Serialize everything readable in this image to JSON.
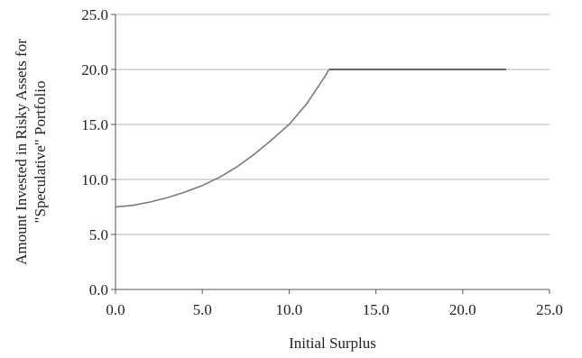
{
  "chart_data": {
    "type": "line",
    "title": "",
    "xlabel": "Initial Surplus",
    "ylabel_line1": "Amount Invested in Risky Assets for",
    "ylabel_line2": "\"Speculative\" Portfolio",
    "xlim": [
      0,
      25
    ],
    "ylim": [
      0,
      25
    ],
    "x_ticks": [
      "0.0",
      "5.0",
      "10.0",
      "15.0",
      "20.0",
      "25.0"
    ],
    "y_ticks": [
      "0.0",
      "5.0",
      "10.0",
      "15.0",
      "20.0",
      "25.0"
    ],
    "grid": "horizontal",
    "series": [
      {
        "color": "#7a7a7a",
        "points": [
          [
            0.0,
            7.5
          ],
          [
            1.0,
            7.65
          ],
          [
            2.0,
            7.95
          ],
          [
            3.0,
            8.35
          ],
          [
            4.0,
            8.85
          ],
          [
            5.0,
            9.45
          ],
          [
            6.0,
            10.2
          ],
          [
            7.0,
            11.15
          ],
          [
            8.0,
            12.3
          ],
          [
            9.0,
            13.6
          ],
          [
            10.0,
            15.0
          ],
          [
            11.0,
            16.85
          ],
          [
            12.0,
            19.2
          ],
          [
            12.3,
            20.0
          ]
        ]
      },
      {
        "color": "#333333",
        "points": [
          [
            12.3,
            20.0
          ],
          [
            22.5,
            20.0
          ]
        ]
      }
    ],
    "colors": {
      "grid": "#b3b3b3",
      "axis": "#555555"
    }
  }
}
